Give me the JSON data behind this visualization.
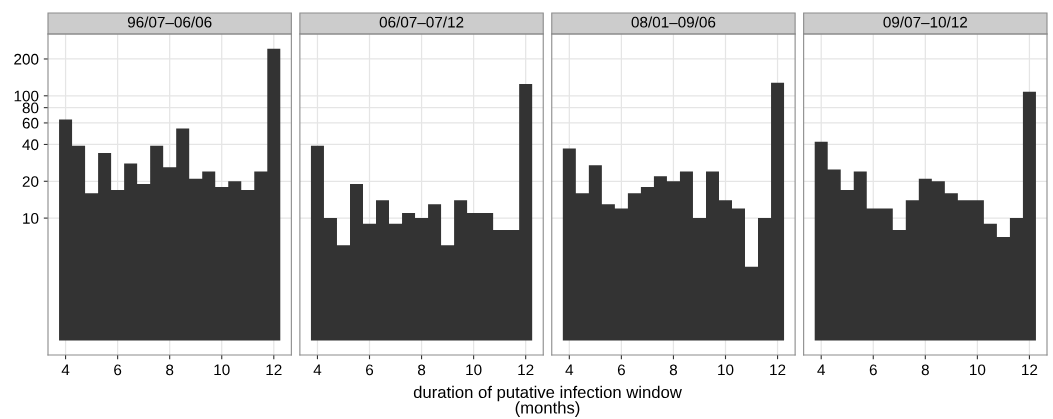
{
  "chart_data": [
    {
      "type": "histogram",
      "title": "96/07–06/06",
      "bins": [
        3.75,
        4.25,
        4.75,
        5.25,
        5.75,
        6.25,
        6.75,
        7.25,
        7.75,
        8.25,
        8.75,
        9.25,
        9.75,
        10.25,
        10.75,
        11.25,
        11.75,
        12.25
      ],
      "values": [
        64,
        39,
        16,
        34,
        17,
        28,
        19,
        39,
        26,
        54,
        21,
        24,
        18,
        20,
        17,
        24,
        242
      ],
      "color": "#333333",
      "log": "y",
      "xlim": [
        3.325,
        12.675
      ],
      "xticks": [
        4,
        6,
        8,
        10,
        12
      ],
      "ylim": [
        0.76,
        320
      ],
      "yticks": [
        10,
        20,
        40,
        60,
        80,
        100,
        200
      ],
      "grid": true
    },
    {
      "type": "histogram",
      "title": "06/07–07/12",
      "bins": [
        3.75,
        4.25,
        4.75,
        5.25,
        5.75,
        6.25,
        6.75,
        7.25,
        7.75,
        8.25,
        8.75,
        9.25,
        9.75,
        10.25,
        10.75,
        11.25,
        11.75,
        12.25
      ],
      "values": [
        39,
        10,
        6,
        19,
        9,
        14,
        9,
        11,
        10,
        13,
        6,
        14,
        11,
        11,
        8,
        8,
        125
      ],
      "color": "#333333",
      "log": "y",
      "xlim": [
        3.325,
        12.675
      ],
      "xticks": [
        4,
        6,
        8,
        10,
        12
      ],
      "ylim": [
        0.76,
        320
      ],
      "yticks": [
        10,
        20,
        40,
        60,
        80,
        100,
        200
      ],
      "grid": true,
      "tick_labels": "x",
      "xlabel": "duration of putative infection window\n(months)"
    },
    {
      "type": "histogram",
      "title": "08/01–09/06",
      "bins": [
        3.75,
        4.25,
        4.75,
        5.25,
        5.75,
        6.25,
        6.75,
        7.25,
        7.75,
        8.25,
        8.75,
        9.25,
        9.75,
        10.25,
        10.75,
        11.25,
        11.75,
        12.25
      ],
      "values": [
        37,
        16,
        27,
        13,
        12,
        16,
        18,
        22,
        20,
        24,
        10,
        24,
        14,
        12,
        4,
        10,
        128
      ],
      "color": "#333333",
      "log": "y",
      "xlim": [
        3.325,
        12.675
      ],
      "xticks": [
        4,
        6,
        8,
        10,
        12
      ],
      "ylim": [
        0.76,
        320
      ],
      "yticks": [
        10,
        20,
        40,
        60,
        80,
        100,
        200
      ],
      "grid": true,
      "tick_labels": "x"
    },
    {
      "type": "histogram",
      "title": "09/07–10/12",
      "bins": [
        3.75,
        4.25,
        4.75,
        5.25,
        5.75,
        6.25,
        6.75,
        7.25,
        7.75,
        8.25,
        8.75,
        9.25,
        9.75,
        10.25,
        10.75,
        11.25,
        11.75,
        12.25
      ],
      "values": [
        42,
        25,
        17,
        24,
        12,
        12,
        8,
        14,
        21,
        20,
        16,
        14,
        14,
        9,
        7,
        10,
        108
      ],
      "color": "#333333",
      "log": "y",
      "xlim": [
        3.325,
        12.675
      ],
      "xticks": [
        4,
        6,
        8,
        10,
        12
      ],
      "ylim": [
        0.76,
        320
      ],
      "yticks": [
        10,
        20,
        40,
        60,
        80,
        100,
        200
      ],
      "grid": true,
      "tick_labels": "x"
    }
  ]
}
